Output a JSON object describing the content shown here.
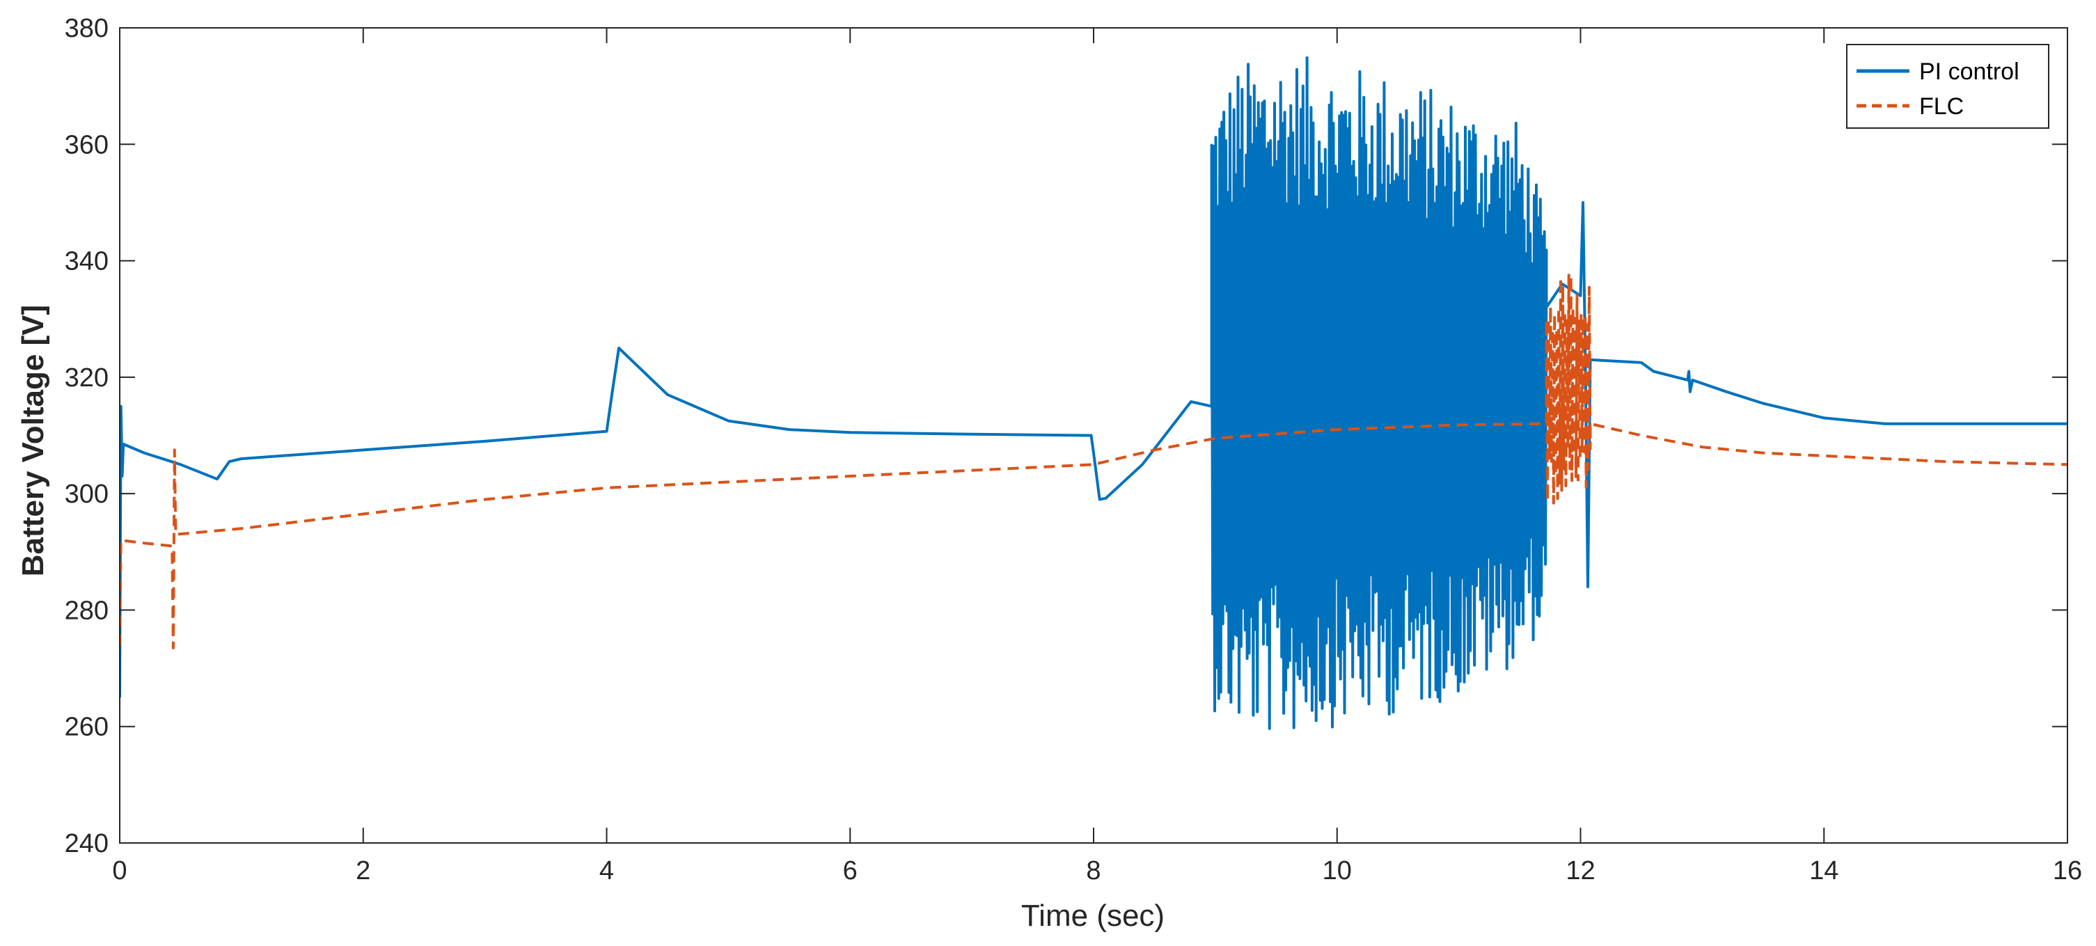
{
  "chart_data": {
    "type": "line",
    "title": "",
    "xlabel": "Time (sec)",
    "ylabel": "Battery Voltage [V]",
    "xlim": [
      0,
      16
    ],
    "ylim": [
      240,
      380
    ],
    "xticks": [
      0,
      2,
      4,
      6,
      8,
      10,
      12,
      14,
      16
    ],
    "yticks": [
      240,
      260,
      280,
      300,
      320,
      340,
      360,
      380
    ],
    "grid": false,
    "legend_position": "top-right",
    "series": [
      {
        "name": "PI control",
        "color": "#0072BD",
        "style": "solid",
        "points": [
          [
            0,
            265
          ],
          [
            0.01,
            315
          ],
          [
            0.02,
            303
          ],
          [
            0.03,
            308.5
          ],
          [
            0.2,
            307
          ],
          [
            0.5,
            305
          ],
          [
            0.8,
            302.5
          ],
          [
            0.9,
            305.5
          ],
          [
            1.0,
            306
          ],
          [
            2.0,
            307.5
          ],
          [
            3.0,
            309
          ],
          [
            4.0,
            310.7
          ],
          [
            4.05,
            318
          ],
          [
            4.1,
            325
          ],
          [
            4.2,
            323
          ],
          [
            4.5,
            317
          ],
          [
            5.0,
            312.5
          ],
          [
            5.5,
            311
          ],
          [
            6.0,
            310.5
          ],
          [
            7.0,
            310.2
          ],
          [
            7.98,
            310
          ],
          [
            8.0,
            307
          ],
          [
            8.05,
            299
          ],
          [
            8.1,
            299.2
          ],
          [
            8.4,
            305
          ],
          [
            8.8,
            315.8
          ],
          [
            8.97,
            315
          ]
        ],
        "oscillation": {
          "x_range": [
            8.97,
            11.72
          ],
          "upper_envelope": [
            [
              8.97,
              368
            ],
            [
              9.2,
              374
            ],
            [
              9.5,
              376
            ],
            [
              10.0,
              374
            ],
            [
              10.5,
              372
            ],
            [
              11.0,
              368
            ],
            [
              11.5,
              364
            ],
            [
              11.72,
              347
            ]
          ],
          "lower_envelope": [
            [
              8.97,
              263
            ],
            [
              9.2,
              259
            ],
            [
              9.5,
              258
            ],
            [
              10.0,
              260
            ],
            [
              10.5,
              262
            ],
            [
              11.0,
              265
            ],
            [
              11.5,
              271
            ],
            [
              11.72,
              278
            ]
          ]
        },
        "points_after": [
          [
            11.72,
            332
          ],
          [
            11.85,
            336
          ],
          [
            12.0,
            334
          ],
          [
            12.02,
            350
          ],
          [
            12.04,
            322
          ],
          [
            12.06,
            284
          ],
          [
            12.08,
            323
          ],
          [
            12.5,
            322.5
          ],
          [
            12.6,
            321
          ],
          [
            12.88,
            319.5
          ],
          [
            12.89,
            321
          ],
          [
            12.9,
            317.5
          ],
          [
            12.92,
            319.5
          ],
          [
            13.2,
            317.5
          ],
          [
            13.5,
            315.5
          ],
          [
            14.0,
            313
          ],
          [
            14.5,
            312
          ],
          [
            15.0,
            312
          ],
          [
            16.0,
            312
          ]
        ]
      },
      {
        "name": "FLC",
        "color": "#D95319",
        "style": "dashed",
        "points": [
          [
            0,
            274
          ],
          [
            0.01,
            292
          ],
          [
            0.2,
            291.5
          ],
          [
            0.43,
            291
          ],
          [
            0.44,
            273.5
          ],
          [
            0.45,
            307.5
          ],
          [
            0.46,
            293
          ],
          [
            1.0,
            294
          ],
          [
            2.0,
            296.5
          ],
          [
            3.0,
            299
          ],
          [
            4.0,
            301
          ],
          [
            5.0,
            302
          ],
          [
            6.0,
            303
          ],
          [
            7.0,
            304
          ],
          [
            8.0,
            305
          ],
          [
            8.5,
            307.5
          ],
          [
            9.0,
            309.5
          ],
          [
            10.0,
            311
          ],
          [
            11.0,
            311.8
          ],
          [
            11.72,
            312
          ]
        ],
        "oscillation": {
          "x_range": [
            11.72,
            12.08
          ],
          "upper_envelope": [
            [
              11.72,
              334
            ],
            [
              11.9,
              339
            ],
            [
              12.08,
              336
            ]
          ],
          "lower_envelope": [
            [
              11.72,
              298
            ],
            [
              11.9,
              299
            ],
            [
              12.08,
              300
            ]
          ]
        },
        "points_after": [
          [
            12.08,
            312
          ],
          [
            12.5,
            310
          ],
          [
            13.0,
            308
          ],
          [
            13.5,
            307
          ],
          [
            14.0,
            306.5
          ],
          [
            15.0,
            305.5
          ],
          [
            16.0,
            305
          ]
        ]
      }
    ]
  }
}
